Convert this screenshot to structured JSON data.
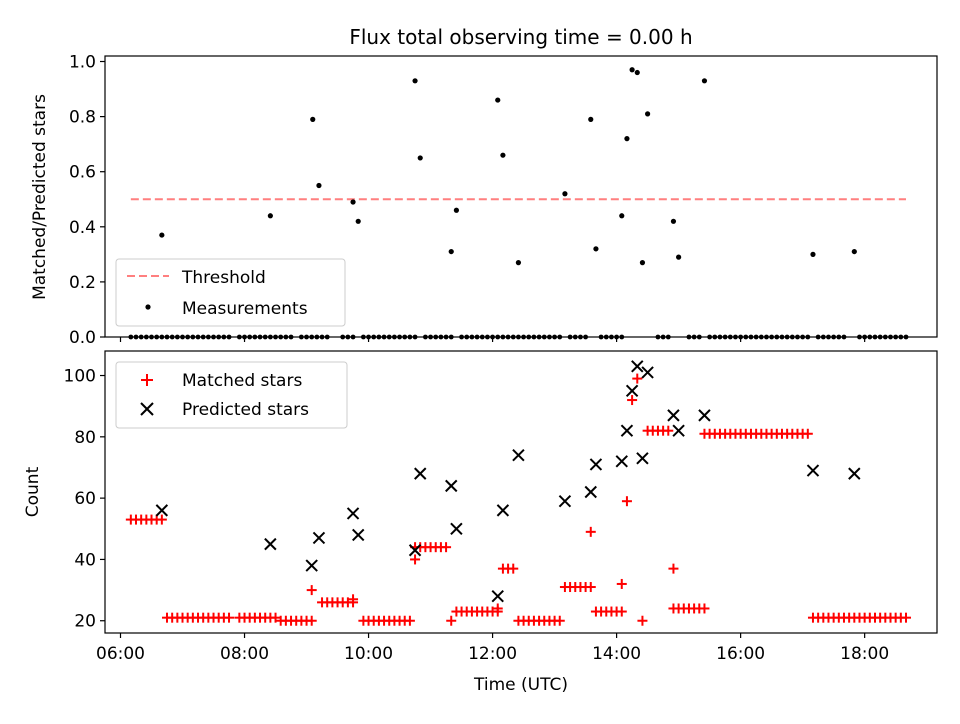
{
  "chart_data": [
    {
      "type": "scatter",
      "title": "Flux total observing time = 0.00 h",
      "xlabel": "",
      "ylabel": "Matched/Predicted stars",
      "xlim": [
        "05:45",
        "19:10"
      ],
      "ylim": [
        0,
        1.02
      ],
      "yticks": [
        0.0,
        0.2,
        0.4,
        0.6,
        0.8,
        1.0
      ],
      "ytick_labels": [
        "0.0",
        "0.2",
        "0.4",
        "0.6",
        "0.8",
        "1.0"
      ],
      "grid": false,
      "legend": "lower-left",
      "threshold": {
        "name": "Threshold",
        "y": 0.5,
        "x_range": [
          "06:10",
          "18:40"
        ],
        "color": "#ff7f7f",
        "style": "dashed"
      },
      "series": [
        {
          "name": "Measurements",
          "color": "#000000",
          "marker": "dot",
          "points": [
            [
              "06:40",
              0.37
            ],
            [
              "08:25",
              0.44
            ],
            [
              "09:06",
              0.79
            ],
            [
              "09:12",
              0.55
            ],
            [
              "09:45",
              0.49
            ],
            [
              "09:50",
              0.42
            ],
            [
              "10:45",
              0.93
            ],
            [
              "10:50",
              0.65
            ],
            [
              "11:20",
              0.31
            ],
            [
              "11:25",
              0.46
            ],
            [
              "12:05",
              0.86
            ],
            [
              "12:10",
              0.66
            ],
            [
              "12:25",
              0.27
            ],
            [
              "13:10",
              0.52
            ],
            [
              "13:35",
              0.79
            ],
            [
              "13:40",
              0.32
            ],
            [
              "14:05",
              0.44
            ],
            [
              "14:10",
              0.72
            ],
            [
              "14:15",
              0.97
            ],
            [
              "14:20",
              0.96
            ],
            [
              "14:25",
              0.27
            ],
            [
              "14:30",
              0.81
            ],
            [
              "14:55",
              0.42
            ],
            [
              "15:00",
              0.29
            ],
            [
              "15:25",
              0.93
            ],
            [
              "17:10",
              0.3
            ],
            [
              "17:50",
              0.31
            ]
          ],
          "zero_runs": [
            [
              "06:10",
              "07:45"
            ],
            [
              "07:55",
              "08:45"
            ],
            [
              "08:55",
              "09:20"
            ],
            [
              "09:35",
              "09:45"
            ],
            [
              "09:55",
              "10:45"
            ],
            [
              "10:55",
              "11:20"
            ],
            [
              "11:30",
              "12:35"
            ],
            [
              "12:40",
              "13:05"
            ],
            [
              "13:15",
              "13:30"
            ],
            [
              "13:45",
              "14:05"
            ],
            [
              "14:40",
              "14:50"
            ],
            [
              "15:10",
              "15:20"
            ],
            [
              "15:30",
              "17:05"
            ],
            [
              "17:15",
              "17:40"
            ],
            [
              "17:55",
              "18:40"
            ]
          ]
        }
      ]
    },
    {
      "type": "scatter",
      "title": "",
      "xlabel": "Time (UTC)",
      "ylabel": "Count",
      "xlim": [
        "05:45",
        "19:10"
      ],
      "ylim": [
        16,
        108
      ],
      "xticks": [
        "06:00",
        "08:00",
        "10:00",
        "12:00",
        "14:00",
        "16:00",
        "18:00"
      ],
      "yticks": [
        20,
        40,
        60,
        80,
        100
      ],
      "ytick_labels": [
        "20",
        "40",
        "60",
        "80",
        "100"
      ],
      "grid": false,
      "legend": "top-left",
      "series": [
        {
          "name": "Matched stars",
          "color": "#ff0000",
          "marker": "plus",
          "runs": [
            [
              "06:10",
              "06:40",
              53
            ],
            [
              "06:45",
              "07:45",
              21
            ],
            [
              "07:55",
              "08:30",
              21
            ],
            [
              "08:35",
              "09:05",
              20
            ],
            [
              "09:15",
              "09:45",
              26
            ],
            [
              "09:55",
              "10:40",
              20
            ],
            [
              "10:45",
              "11:15",
              44
            ],
            [
              "11:25",
              "12:05",
              23
            ],
            [
              "12:10",
              "12:20",
              37
            ],
            [
              "12:25",
              "13:05",
              20
            ],
            [
              "13:10",
              "13:35",
              31
            ],
            [
              "13:40",
              "14:05",
              23
            ],
            [
              "14:30",
              "14:50",
              82
            ],
            [
              "14:55",
              "15:25",
              24
            ],
            [
              "15:25",
              "17:05",
              81
            ],
            [
              "17:10",
              "18:40",
              21
            ]
          ],
          "points": [
            [
              "09:05",
              30
            ],
            [
              "09:45",
              27
            ],
            [
              "10:45",
              40
            ],
            [
              "11:20",
              20
            ],
            [
              "12:05",
              24
            ],
            [
              "13:35",
              49
            ],
            [
              "14:05",
              32
            ],
            [
              "14:10",
              59
            ],
            [
              "14:15",
              92
            ],
            [
              "14:20",
              99
            ],
            [
              "14:25",
              20
            ],
            [
              "14:55",
              37
            ]
          ]
        },
        {
          "name": "Predicted stars",
          "color": "#000000",
          "marker": "x",
          "points": [
            [
              "06:40",
              56
            ],
            [
              "08:25",
              45
            ],
            [
              "09:05",
              38
            ],
            [
              "09:12",
              47
            ],
            [
              "09:45",
              55
            ],
            [
              "09:50",
              48
            ],
            [
              "10:45",
              43
            ],
            [
              "10:50",
              68
            ],
            [
              "11:20",
              64
            ],
            [
              "11:25",
              50
            ],
            [
              "12:05",
              28
            ],
            [
              "12:10",
              56
            ],
            [
              "12:25",
              74
            ],
            [
              "13:10",
              59
            ],
            [
              "13:35",
              62
            ],
            [
              "13:40",
              71
            ],
            [
              "14:05",
              72
            ],
            [
              "14:10",
              82
            ],
            [
              "14:15",
              95
            ],
            [
              "14:20",
              103
            ],
            [
              "14:25",
              73
            ],
            [
              "14:30",
              101
            ],
            [
              "14:55",
              87
            ],
            [
              "15:00",
              82
            ],
            [
              "15:25",
              87
            ],
            [
              "17:10",
              69
            ],
            [
              "17:50",
              68
            ]
          ]
        }
      ]
    }
  ]
}
